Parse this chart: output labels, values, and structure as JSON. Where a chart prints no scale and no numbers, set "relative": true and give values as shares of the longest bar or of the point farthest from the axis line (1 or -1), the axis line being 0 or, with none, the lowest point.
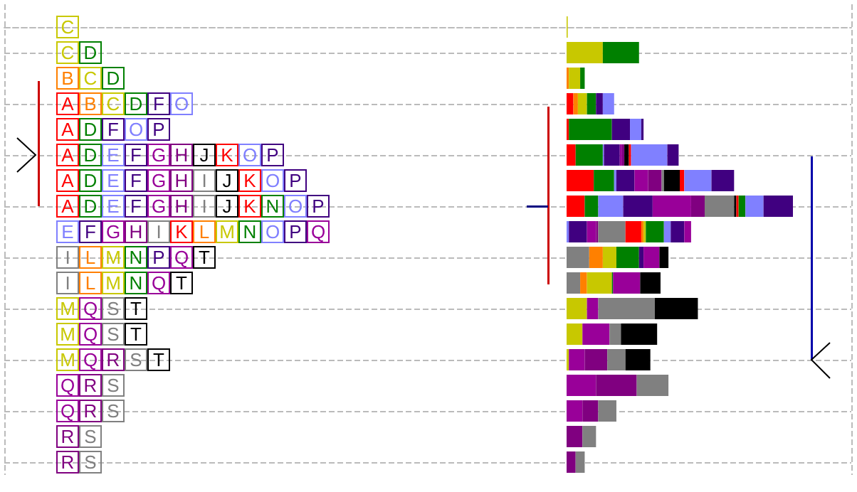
{
  "chart_data": {
    "type": "bar",
    "orientation": "horizontal",
    "stacked": true,
    "relative": true,
    "grid": "y",
    "categories": [
      "C",
      "C D",
      "B C D",
      "A B C D F O",
      "A D F O P",
      "A D E F G H J K O P",
      "A D E F G H I J K O P",
      "A D E F G H I J K N O P",
      "E F G H I K L M N O P Q",
      "I L M N P Q T",
      "I L M N Q T",
      "M Q S T",
      "M Q S T",
      "M Q R S T",
      "Q R S",
      "Q R S",
      "R S",
      "R S"
    ],
    "series": [
      {
        "color": "#ff0000",
        "values": [
          null,
          null,
          null,
          0.03,
          0.01,
          0.04,
          0.12,
          0.08,
          null,
          null,
          null,
          null,
          null,
          null,
          null,
          null,
          null,
          null
        ]
      },
      {
        "color": "#ff8000",
        "values": [
          null,
          null,
          0.01,
          0.02,
          null,
          null,
          null,
          null,
          null,
          null,
          null,
          null,
          null,
          null,
          null,
          null,
          null,
          null
        ]
      },
      {
        "color": "#c8c800",
        "values": [
          0.005,
          0.16,
          0.05,
          0.04,
          null,
          null,
          null,
          null,
          null,
          null,
          null,
          null,
          null,
          null,
          null,
          null,
          null,
          null
        ]
      },
      {
        "color": "#008000",
        "values": [
          null,
          0.16,
          0.02,
          0.04,
          0.19,
          0.12,
          0.09,
          0.06,
          null,
          null,
          null,
          null,
          null,
          null,
          null,
          null,
          null,
          null
        ]
      },
      {
        "color": "#8080ff",
        "values": [
          null,
          null,
          null,
          null,
          null,
          0.005,
          0.01,
          0.11,
          0.01,
          null,
          null,
          null,
          null,
          null,
          null,
          null,
          null,
          null
        ]
      },
      {
        "color": "#400080",
        "values": [
          null,
          null,
          null,
          0.03,
          0.08,
          0.07,
          0.08,
          0.13,
          0.08,
          null,
          null,
          null,
          null,
          null,
          null,
          null,
          null,
          null
        ]
      },
      {
        "color": "#990099",
        "values": [
          null,
          null,
          null,
          null,
          null,
          0.01,
          0.06,
          0.17,
          0.04,
          null,
          null,
          null,
          null,
          null,
          null,
          null,
          null,
          null
        ]
      },
      {
        "color": "#800080",
        "values": [
          null,
          null,
          null,
          null,
          null,
          0.01,
          0.06,
          0.06,
          0.01,
          null,
          null,
          null,
          null,
          null,
          null,
          null,
          null,
          null
        ]
      },
      {
        "color": "#808080",
        "values": [
          null,
          null,
          null,
          null,
          null,
          null,
          0.01,
          0.13,
          0.12,
          0.1,
          0.06,
          null,
          null,
          null,
          null,
          null,
          null,
          null
        ]
      },
      {
        "color": "#000000",
        "values": [
          null,
          null,
          null,
          null,
          null,
          0.02,
          0.07,
          0.01,
          null,
          null,
          null,
          null,
          null,
          null,
          null,
          null,
          null,
          null
        ]
      },
      {
        "color": "#ff0000",
        "values": [
          null,
          null,
          null,
          null,
          null,
          0.01,
          0.02,
          0.01,
          0.07,
          null,
          null,
          null,
          null,
          null,
          null,
          null,
          null,
          null
        ]
      },
      {
        "color": "#ff8000",
        "values": [
          null,
          null,
          null,
          null,
          null,
          null,
          null,
          null,
          0.01,
          0.06,
          0.03,
          null,
          null,
          null,
          null,
          null,
          null,
          null
        ]
      },
      {
        "color": "#c8c800",
        "values": [
          null,
          null,
          null,
          null,
          null,
          null,
          null,
          null,
          0.01,
          0.06,
          0.11,
          0.09,
          0.07,
          0.01,
          null,
          null,
          null,
          null
        ]
      },
      {
        "color": "#008000",
        "values": [
          null,
          null,
          null,
          null,
          null,
          null,
          null,
          0.03,
          0.08,
          0.1,
          0.005,
          null,
          null,
          null,
          null,
          null,
          null,
          null
        ]
      },
      {
        "color": "#8080ff",
        "values": [
          null,
          null,
          null,
          0.05,
          0.05,
          0.16,
          0.12,
          0.08,
          0.03,
          null,
          null,
          null,
          null,
          null,
          null,
          null,
          null,
          null
        ]
      },
      {
        "color": "#400080",
        "values": [
          null,
          null,
          null,
          null,
          0.01,
          0.05,
          0.1,
          0.13,
          0.06,
          0.02,
          null,
          null,
          null,
          null,
          null,
          null,
          null,
          null
        ]
      },
      {
        "color": "#990099",
        "values": [
          null,
          null,
          null,
          null,
          null,
          null,
          null,
          null,
          0.03,
          0.07,
          0.12,
          0.05,
          0.12,
          0.07,
          0.13,
          0.07,
          null,
          null
        ]
      },
      {
        "color": "#800080",
        "values": [
          null,
          null,
          null,
          null,
          null,
          null,
          null,
          null,
          null,
          null,
          null,
          null,
          null,
          0.1,
          0.18,
          0.07,
          0.07,
          0.04
        ]
      },
      {
        "color": "#808080",
        "values": [
          null,
          null,
          null,
          null,
          null,
          null,
          null,
          null,
          null,
          null,
          null,
          0.25,
          0.05,
          0.08,
          0.14,
          0.08,
          0.06,
          0.04
        ]
      },
      {
        "color": "#000000",
        "values": [
          null,
          null,
          null,
          null,
          null,
          null,
          null,
          null,
          null,
          0.04,
          0.09,
          0.19,
          0.16,
          0.11,
          null,
          null,
          null,
          null
        ]
      }
    ]
  }
}
